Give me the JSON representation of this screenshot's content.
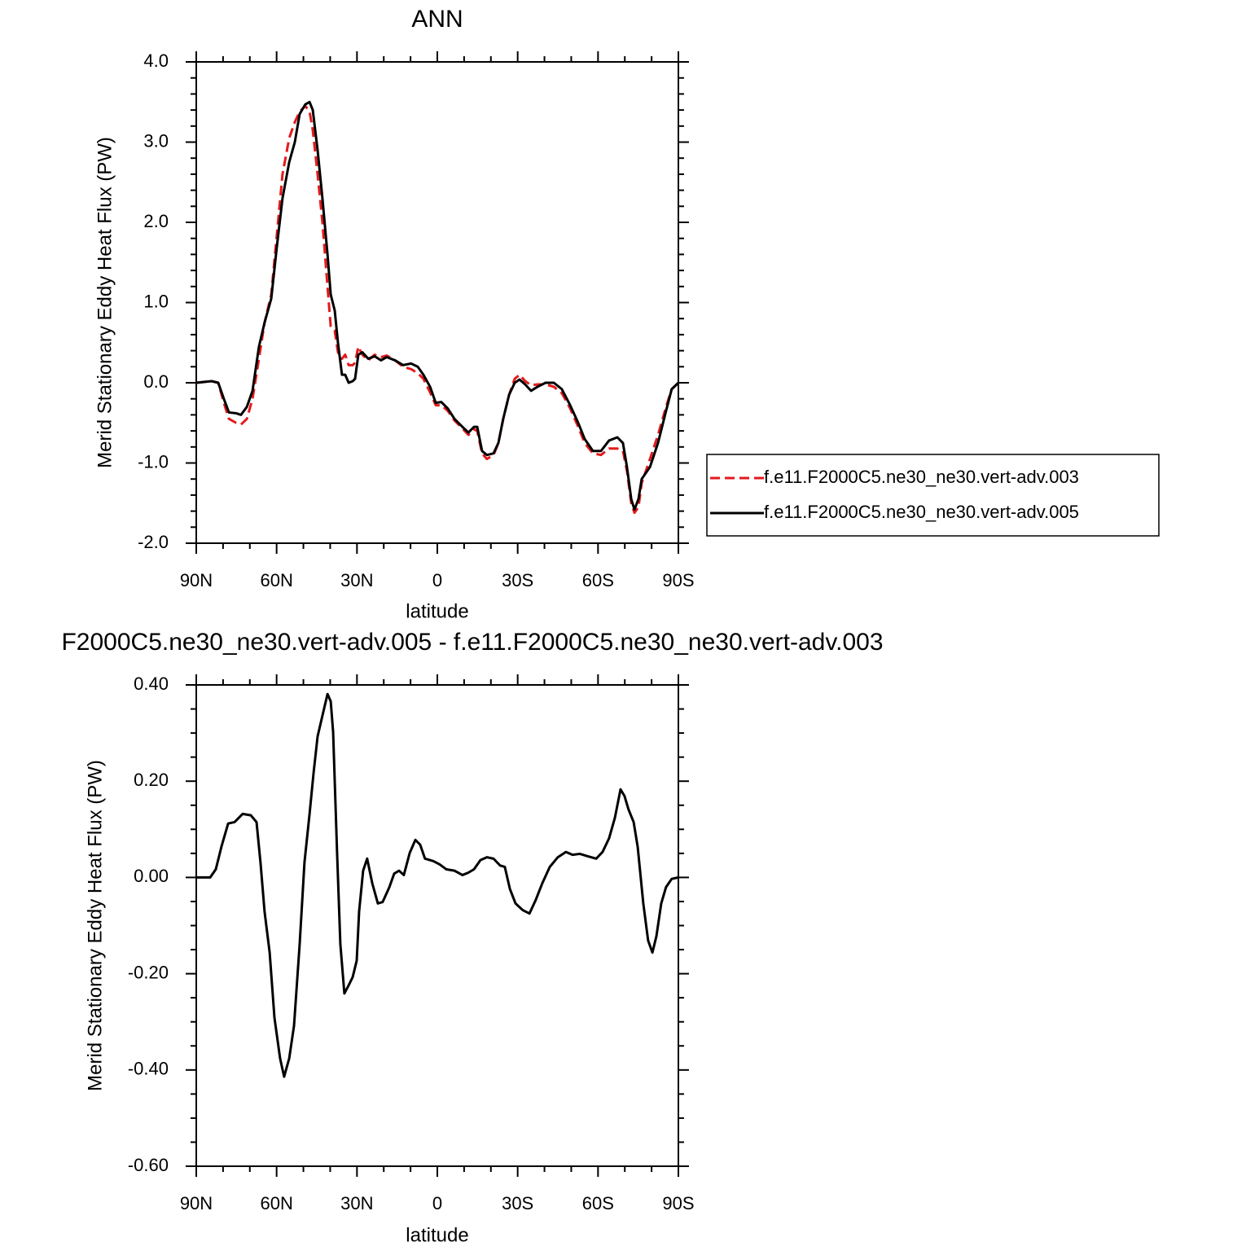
{
  "chart_data": [
    {
      "type": "line",
      "title": "ANN",
      "xlabel": "latitude",
      "ylabel": "Merid Stationary Eddy Heat Flux (PW)",
      "x": [
        90,
        84.2,
        81.8,
        79.7,
        77.8,
        75.1,
        73.3,
        71.1,
        69.0,
        66.6,
        64.5,
        62.0,
        59.9,
        57.8,
        55.3,
        53.2,
        51.4,
        49.3,
        47.7,
        46.5,
        44.7,
        42.9,
        41.0,
        39.8,
        38.3,
        37.1,
        35.6,
        34.4,
        33.1,
        31.6,
        30.7,
        29.5,
        28.0,
        25.8,
        23.4,
        21.0,
        18.9,
        15.8,
        12.8,
        9.8,
        7.3,
        5.2,
        2.7,
        0.6,
        -1.5,
        -3.9,
        -6.4,
        -9.4,
        -11.6,
        -13.7,
        -14.9,
        -16.7,
        -18.5,
        -21.0,
        -22.8,
        -24.6,
        -26.8,
        -28.9,
        -30.7,
        -32.8,
        -35.0,
        -37.4,
        -40.4,
        -43.5,
        -46.5,
        -49.6,
        -52.6,
        -55.0,
        -58.1,
        -61.1,
        -64.1,
        -67.2,
        -69.3,
        -70.8,
        -72.4,
        -73.6,
        -75.1,
        -76.3,
        -79.4,
        -82.4,
        -85.4,
        -87.5,
        -90
      ],
      "series": [
        {
          "name": "f.e11.F2000C5.ne30_ne30.vert-adv.003",
          "color": "#e31a1c",
          "style": "dashed",
          "values": [
            0,
            0.02,
            0,
            -0.25,
            -0.45,
            -0.5,
            -0.52,
            -0.45,
            -0.2,
            0.3,
            0.75,
            1.1,
            1.85,
            2.6,
            3.05,
            3.25,
            3.38,
            3.45,
            3.38,
            3.15,
            2.6,
            2.0,
            1.2,
            0.7,
            0.65,
            0.38,
            0.3,
            0.35,
            0.22,
            0.22,
            0.25,
            0.45,
            0.35,
            0.28,
            0.35,
            0.32,
            0.34,
            0.28,
            0.2,
            0.17,
            0.12,
            0.05,
            -0.12,
            -0.28,
            -0.28,
            -0.35,
            -0.47,
            -0.57,
            -0.65,
            -0.58,
            -0.6,
            -0.88,
            -0.95,
            -0.9,
            -0.75,
            -0.45,
            -0.15,
            0.05,
            0.1,
            0.02,
            -0.03,
            -0.02,
            -0.02,
            -0.05,
            -0.13,
            -0.32,
            -0.55,
            -0.75,
            -0.88,
            -0.9,
            -0.82,
            -0.82,
            -0.85,
            -1.1,
            -1.5,
            -1.62,
            -1.55,
            -1.25,
            -0.95,
            -0.65,
            -0.3,
            -0.08,
            0
          ]
        },
        {
          "name": "f.e11.F2000C5.ne30_ne30.vert-adv.005",
          "color": "#000000",
          "style": "solid",
          "values": [
            0,
            0.02,
            0,
            -0.2,
            -0.37,
            -0.38,
            -0.4,
            -0.3,
            -0.1,
            0.45,
            0.75,
            1.05,
            1.7,
            2.3,
            2.75,
            3.0,
            3.35,
            3.47,
            3.5,
            3.4,
            2.9,
            2.3,
            1.6,
            1.1,
            0.9,
            0.5,
            0.1,
            0.1,
            0,
            0.02,
            0.05,
            0.35,
            0.38,
            0.3,
            0.33,
            0.28,
            0.32,
            0.28,
            0.22,
            0.24,
            0.2,
            0.1,
            -0.05,
            -0.25,
            -0.24,
            -0.32,
            -0.45,
            -0.55,
            -0.62,
            -0.55,
            -0.55,
            -0.85,
            -0.9,
            -0.88,
            -0.75,
            -0.45,
            -0.15,
            0,
            0.04,
            -0.02,
            -0.1,
            -0.05,
            0,
            0,
            -0.08,
            -0.28,
            -0.5,
            -0.7,
            -0.85,
            -0.85,
            -0.72,
            -0.68,
            -0.75,
            -1.05,
            -1.45,
            -1.58,
            -1.45,
            -1.2,
            -1.05,
            -0.75,
            -0.35,
            -0.08,
            0
          ]
        }
      ],
      "xlim": [
        90,
        -90
      ],
      "xticks": [
        {
          "value": 90,
          "label": "90N"
        },
        {
          "value": 60,
          "label": "60N"
        },
        {
          "value": 30,
          "label": "30N"
        },
        0,
        {
          "value": -30,
          "label": "30S"
        },
        {
          "value": -60,
          "label": "60S"
        },
        {
          "value": -90,
          "label": "90S"
        }
      ],
      "xminorticks": [
        80,
        70,
        50,
        40,
        20,
        10,
        -10,
        -20,
        -40,
        -50,
        -70,
        -80
      ],
      "ylim": [
        -2,
        4
      ],
      "yticks": [
        {
          "value": -2,
          "label": "-2.0"
        },
        {
          "value": -1,
          "label": "-1.0"
        },
        {
          "value": 0,
          "label": "0.0"
        },
        {
          "value": 1,
          "label": "1.0"
        },
        {
          "value": 2,
          "label": "2.0"
        },
        {
          "value": 3,
          "label": "3.0"
        },
        {
          "value": 4,
          "label": "4.0"
        }
      ],
      "yminorticks": [
        -1.8,
        -1.6,
        -1.4,
        -1.2,
        -0.8,
        -0.6,
        -0.4,
        -0.2,
        0.2,
        0.4,
        0.6,
        0.8,
        1.2,
        1.4,
        1.6,
        1.8,
        2.2,
        2.4,
        2.6,
        2.8,
        3.2,
        3.4,
        3.6,
        3.8
      ],
      "legend": "right"
    },
    {
      "type": "line",
      "title": "F2000C5.ne30_ne30.vert-adv.005 - f.e11.F2000C5.ne30_ne30.vert-adv.003",
      "xlabel": "latitude",
      "ylabel": "Merid Stationary Eddy Heat Flux (PW)",
      "x": [
        90,
        84.8,
        82.7,
        80.6,
        78.1,
        75.7,
        72.7,
        69.6,
        67.5,
        66.0,
        64.5,
        62.6,
        60.8,
        58.7,
        57.2,
        55.3,
        53.5,
        51.4,
        49.6,
        47.7,
        46.2,
        44.7,
        42.9,
        41.0,
        39.8,
        38.9,
        37.4,
        36.2,
        34.7,
        33.1,
        31.6,
        30.1,
        29.2,
        27.7,
        26.2,
        24.3,
        22.2,
        20.4,
        17.9,
        16.1,
        14.3,
        12.5,
        10.3,
        8.2,
        6.4,
        4.6,
        1.5,
        -0.9,
        -3.3,
        -6.4,
        -9.4,
        -11.6,
        -13.7,
        -16.1,
        -18.5,
        -21.0,
        -23.4,
        -25.2,
        -27.1,
        -29.2,
        -31.9,
        -34.4,
        -36.8,
        -39.2,
        -42.0,
        -45.0,
        -48.0,
        -50.5,
        -53.2,
        -56.2,
        -59.3,
        -61.7,
        -64.1,
        -66.3,
        -68.4,
        -69.9,
        -71.4,
        -73.3,
        -74.8,
        -76.9,
        -78.7,
        -80.3,
        -81.8,
        -83.6,
        -85.4,
        -87.5,
        -90
      ],
      "values": [
        0,
        0,
        0.017,
        0.064,
        0.112,
        0.115,
        0.132,
        0.129,
        0.115,
        0.03,
        -0.071,
        -0.156,
        -0.292,
        -0.376,
        -0.414,
        -0.376,
        -0.308,
        -0.139,
        0.031,
        0.132,
        0.217,
        0.293,
        0.336,
        0.381,
        0.366,
        0.302,
        0.047,
        -0.139,
        -0.241,
        -0.224,
        -0.207,
        -0.173,
        -0.071,
        0.014,
        0.039,
        -0.012,
        -0.054,
        -0.051,
        -0.02,
        0.008,
        0.014,
        0.005,
        0.051,
        0.078,
        0.068,
        0.039,
        0.034,
        0.027,
        0.017,
        0.014,
        0.005,
        0.01,
        0.017,
        0.036,
        0.042,
        0.039,
        0.025,
        0.022,
        -0.024,
        -0.054,
        -0.068,
        -0.075,
        -0.046,
        -0.012,
        0.022,
        0.042,
        0.053,
        0.047,
        0.049,
        0.044,
        0.039,
        0.053,
        0.081,
        0.124,
        0.183,
        0.169,
        0.141,
        0.115,
        0.064,
        -0.054,
        -0.131,
        -0.156,
        -0.122,
        -0.054,
        -0.02,
        -0.003,
        0
      ],
      "color": "#000000",
      "xlim": [
        90,
        -90
      ],
      "xticks": [
        {
          "value": 90,
          "label": "90N"
        },
        {
          "value": 60,
          "label": "60N"
        },
        {
          "value": 30,
          "label": "30N"
        },
        0,
        {
          "value": -30,
          "label": "30S"
        },
        {
          "value": -60,
          "label": "60S"
        },
        {
          "value": -90,
          "label": "90S"
        }
      ],
      "xminorticks": [
        80,
        70,
        50,
        40,
        20,
        10,
        -10,
        -20,
        -40,
        -50,
        -70,
        -80
      ],
      "ylim": [
        -0.6,
        0.4
      ],
      "yticks": [
        {
          "value": -0.6,
          "label": "-0.60"
        },
        {
          "value": -0.4,
          "label": "-0.40"
        },
        {
          "value": -0.2,
          "label": "-0.20"
        },
        {
          "value": 0,
          "label": "0.00"
        },
        {
          "value": 0.2,
          "label": "0.20"
        },
        {
          "value": 0.4,
          "label": "0.40"
        }
      ],
      "yminorticks": [
        -0.55,
        -0.5,
        -0.45,
        -0.35,
        -0.3,
        -0.25,
        -0.15,
        -0.1,
        -0.05,
        0.05,
        0.1,
        0.15,
        0.25,
        0.3,
        0.35
      ]
    }
  ]
}
